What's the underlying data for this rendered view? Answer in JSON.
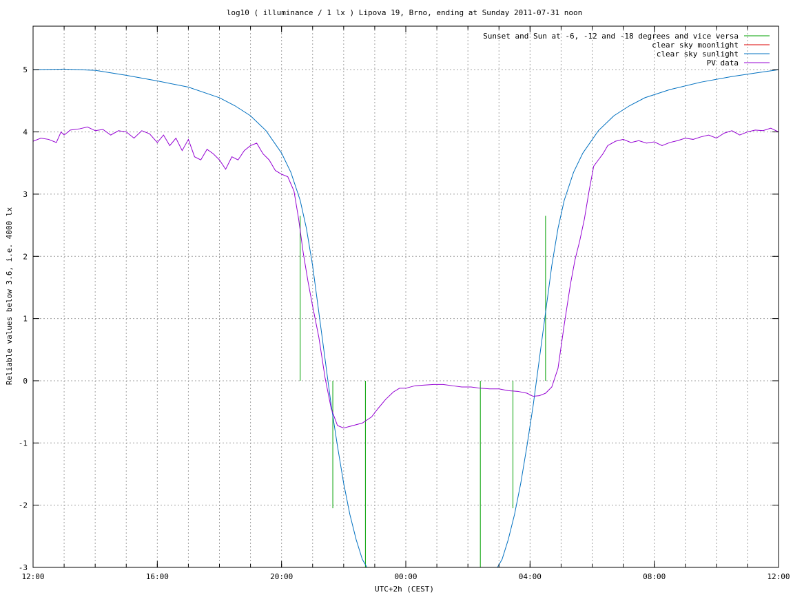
{
  "chart_data": {
    "type": "line",
    "title": "log10 ( illuminance / 1 lx ) Lipova 19, Brno, ending at Sunday 2011-07-31 noon",
    "xlabel": "UTC+2h (CEST)",
    "ylabel": "Reliable values below 3.6, i.e. 4000 lx",
    "x_unit": "hours relative to 2011-07-30 12:00 CEST",
    "xlim": [
      0,
      24
    ],
    "ylim": [
      -3,
      5.7
    ],
    "x_ticks": [
      {
        "value": 0,
        "label": "12:00"
      },
      {
        "value": 4,
        "label": "16:00"
      },
      {
        "value": 8,
        "label": "20:00"
      },
      {
        "value": 12,
        "label": "00:00"
      },
      {
        "value": 16,
        "label": "04:00"
      },
      {
        "value": 20,
        "label": "08:00"
      },
      {
        "value": 24,
        "label": "12:00"
      }
    ],
    "x_minor_grid_step": 1,
    "y_ticks": [
      {
        "value": -3,
        "label": "-3"
      },
      {
        "value": -2,
        "label": "-2"
      },
      {
        "value": -1,
        "label": "-1"
      },
      {
        "value": 0,
        "label": "0"
      },
      {
        "value": 1,
        "label": "1"
      },
      {
        "value": 2,
        "label": "2"
      },
      {
        "value": 3,
        "label": "3"
      },
      {
        "value": 4,
        "label": "4"
      },
      {
        "value": 5,
        "label": "5"
      }
    ],
    "grid": true,
    "legend_position": "top-right",
    "series": [
      {
        "name": "Sunset and Sun at -6, -12 and -18 degrees and vice versa",
        "color": "#00a000",
        "kind": "markers",
        "markers": [
          {
            "x": 8.6,
            "y_top": 2.65,
            "y_bottom": 0
          },
          {
            "x": 9.65,
            "y_top": 0,
            "y_bottom": -2.05
          },
          {
            "x": 10.7,
            "y_top": 0,
            "y_bottom": -3
          },
          {
            "x": 14.4,
            "y_top": 0,
            "y_bottom": -3
          },
          {
            "x": 15.45,
            "y_top": 0,
            "y_bottom": -2.05
          },
          {
            "x": 16.5,
            "y_top": 2.65,
            "y_bottom": 0
          }
        ]
      },
      {
        "name": "clear sky moonlight",
        "color": "#dd0000",
        "kind": "line",
        "points": []
      },
      {
        "name": "clear sky sunlight",
        "color": "#0070c0",
        "kind": "line",
        "points": [
          [
            0,
            5.0
          ],
          [
            1,
            5.01
          ],
          [
            2,
            4.99
          ],
          [
            3,
            4.91
          ],
          [
            4,
            4.82
          ],
          [
            5,
            4.72
          ],
          [
            6,
            4.55
          ],
          [
            6.5,
            4.42
          ],
          [
            7,
            4.26
          ],
          [
            7.5,
            4.02
          ],
          [
            8,
            3.66
          ],
          [
            8.3,
            3.35
          ],
          [
            8.6,
            2.9
          ],
          [
            8.8,
            2.45
          ],
          [
            9,
            1.85
          ],
          [
            9.2,
            1.1
          ],
          [
            9.4,
            0.35
          ],
          [
            9.6,
            -0.4
          ],
          [
            9.8,
            -1.05
          ],
          [
            10,
            -1.65
          ],
          [
            10.2,
            -2.15
          ],
          [
            10.4,
            -2.55
          ],
          [
            10.6,
            -2.87
          ],
          [
            10.75,
            -3.0
          ]
        ],
        "points_dawn": [
          [
            14.95,
            -3.0
          ],
          [
            15.1,
            -2.87
          ],
          [
            15.3,
            -2.55
          ],
          [
            15.5,
            -2.15
          ],
          [
            15.7,
            -1.65
          ],
          [
            15.9,
            -1.05
          ],
          [
            16.1,
            -0.4
          ],
          [
            16.3,
            0.35
          ],
          [
            16.5,
            1.1
          ],
          [
            16.7,
            1.85
          ],
          [
            16.9,
            2.45
          ],
          [
            17.1,
            2.9
          ],
          [
            17.4,
            3.35
          ],
          [
            17.7,
            3.66
          ],
          [
            18.2,
            4.02
          ],
          [
            18.7,
            4.26
          ],
          [
            19.2,
            4.42
          ],
          [
            19.7,
            4.55
          ],
          [
            20.5,
            4.68
          ],
          [
            21.5,
            4.8
          ],
          [
            22.5,
            4.89
          ],
          [
            23.3,
            4.95
          ],
          [
            24,
            5.0
          ]
        ]
      },
      {
        "name": "PV data",
        "color": "#9400d3",
        "kind": "line",
        "points": [
          [
            0,
            3.85
          ],
          [
            0.25,
            3.9
          ],
          [
            0.5,
            3.88
          ],
          [
            0.75,
            3.83
          ],
          [
            0.9,
            4.0
          ],
          [
            1.0,
            3.95
          ],
          [
            1.2,
            4.03
          ],
          [
            1.5,
            4.05
          ],
          [
            1.75,
            4.08
          ],
          [
            2.0,
            4.02
          ],
          [
            2.25,
            4.04
          ],
          [
            2.5,
            3.95
          ],
          [
            2.75,
            4.02
          ],
          [
            3.0,
            4.0
          ],
          [
            3.25,
            3.9
          ],
          [
            3.5,
            4.02
          ],
          [
            3.75,
            3.97
          ],
          [
            4.0,
            3.83
          ],
          [
            4.2,
            3.95
          ],
          [
            4.4,
            3.78
          ],
          [
            4.6,
            3.9
          ],
          [
            4.8,
            3.7
          ],
          [
            5.0,
            3.88
          ],
          [
            5.2,
            3.6
          ],
          [
            5.4,
            3.55
          ],
          [
            5.6,
            3.72
          ],
          [
            5.8,
            3.65
          ],
          [
            6.0,
            3.55
          ],
          [
            6.2,
            3.4
          ],
          [
            6.4,
            3.6
          ],
          [
            6.6,
            3.55
          ],
          [
            6.8,
            3.7
          ],
          [
            7.0,
            3.78
          ],
          [
            7.2,
            3.82
          ],
          [
            7.4,
            3.65
          ],
          [
            7.6,
            3.55
          ],
          [
            7.8,
            3.38
          ],
          [
            8.0,
            3.32
          ],
          [
            8.2,
            3.28
          ],
          [
            8.4,
            3.05
          ],
          [
            8.55,
            2.6
          ],
          [
            8.7,
            2.05
          ],
          [
            8.85,
            1.6
          ],
          [
            9.0,
            1.2
          ],
          [
            9.2,
            0.7
          ],
          [
            9.4,
            0.05
          ],
          [
            9.6,
            -0.45
          ],
          [
            9.8,
            -0.72
          ],
          [
            10.0,
            -0.76
          ],
          [
            10.3,
            -0.72
          ],
          [
            10.6,
            -0.68
          ],
          [
            10.9,
            -0.58
          ],
          [
            11.1,
            -0.45
          ],
          [
            11.35,
            -0.3
          ],
          [
            11.6,
            -0.18
          ],
          [
            11.8,
            -0.12
          ],
          [
            12.0,
            -0.12
          ],
          [
            12.3,
            -0.08
          ],
          [
            12.6,
            -0.07
          ],
          [
            12.9,
            -0.06
          ],
          [
            13.2,
            -0.06
          ],
          [
            13.5,
            -0.08
          ],
          [
            13.8,
            -0.1
          ],
          [
            14.1,
            -0.1
          ],
          [
            14.4,
            -0.12
          ],
          [
            14.7,
            -0.13
          ],
          [
            15.0,
            -0.13
          ],
          [
            15.3,
            -0.16
          ],
          [
            15.6,
            -0.17
          ],
          [
            15.9,
            -0.2
          ],
          [
            16.1,
            -0.25
          ],
          [
            16.3,
            -0.24
          ],
          [
            16.5,
            -0.2
          ],
          [
            16.7,
            -0.1
          ],
          [
            16.9,
            0.2
          ],
          [
            17.1,
            0.9
          ],
          [
            17.3,
            1.55
          ],
          [
            17.45,
            1.95
          ],
          [
            17.6,
            2.25
          ],
          [
            17.75,
            2.6
          ],
          [
            17.9,
            3.05
          ],
          [
            18.05,
            3.45
          ],
          [
            18.2,
            3.55
          ],
          [
            18.35,
            3.65
          ],
          [
            18.5,
            3.78
          ],
          [
            18.75,
            3.85
          ],
          [
            19.0,
            3.88
          ],
          [
            19.25,
            3.83
          ],
          [
            19.5,
            3.86
          ],
          [
            19.75,
            3.82
          ],
          [
            20.0,
            3.84
          ],
          [
            20.25,
            3.78
          ],
          [
            20.5,
            3.83
          ],
          [
            20.75,
            3.86
          ],
          [
            21.0,
            3.9
          ],
          [
            21.25,
            3.88
          ],
          [
            21.5,
            3.92
          ],
          [
            21.75,
            3.95
          ],
          [
            22.0,
            3.9
          ],
          [
            22.25,
            3.98
          ],
          [
            22.5,
            4.02
          ],
          [
            22.75,
            3.95
          ],
          [
            23.0,
            4.0
          ],
          [
            23.25,
            4.03
          ],
          [
            23.5,
            4.02
          ],
          [
            23.75,
            4.06
          ],
          [
            24.0,
            4.0
          ]
        ]
      }
    ]
  }
}
